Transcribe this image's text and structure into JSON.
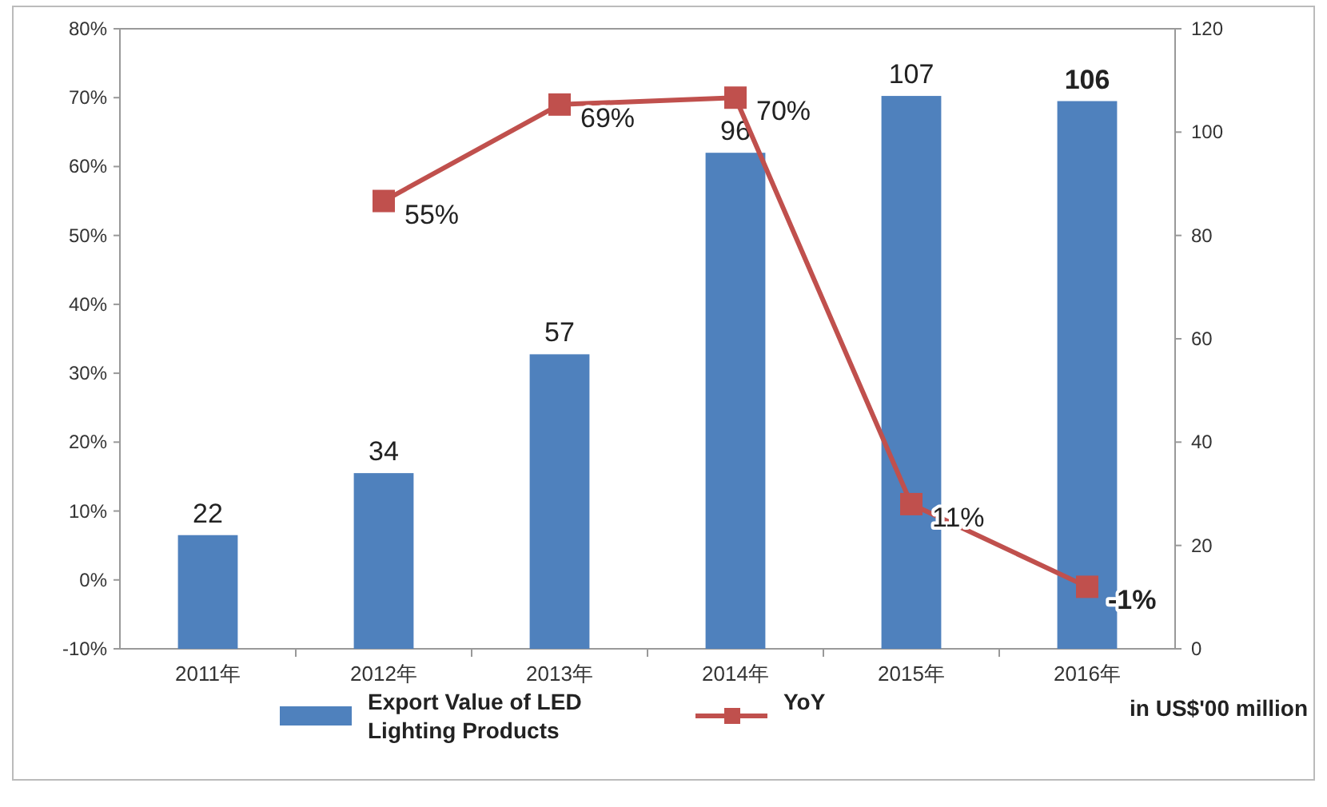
{
  "chart_data": {
    "type": "bar",
    "categories": [
      "2011年",
      "2012年",
      "2013年",
      "2014年",
      "2015年",
      "2016年"
    ],
    "series": [
      {
        "name": "Export Value of LED Lighting Products",
        "axis": "y2",
        "color": "#4f81bd",
        "values": [
          22,
          34,
          57,
          96,
          107,
          106
        ],
        "value_labels": [
          "22",
          "34",
          "57",
          "96",
          "107",
          "**106**"
        ]
      },
      {
        "name": "YoY",
        "type": "line",
        "color": "#c0504d",
        "marker": "square",
        "values": [
          null,
          55,
          69,
          70,
          11,
          -1
        ],
        "value_labels": [
          null,
          "55%",
          "69%",
          "70%",
          "11%",
          "**-1%**"
        ]
      }
    ],
    "ylim": [
      -10,
      80
    ],
    "yticks": [
      {
        "value": -10,
        "label": "-10%"
      },
      {
        "value": 0,
        "label": "0%"
      },
      {
        "value": 10,
        "label": "10%"
      },
      {
        "value": 20,
        "label": "20%"
      },
      {
        "value": 30,
        "label": "30%"
      },
      {
        "value": 40,
        "label": "40%"
      },
      {
        "value": 50,
        "label": "50%"
      },
      {
        "value": 60,
        "label": "60%"
      },
      {
        "value": 70,
        "label": "70%"
      },
      {
        "value": 80,
        "label": "80%"
      }
    ],
    "y2lim": [
      0,
      120
    ],
    "y2ticks": [
      0,
      20,
      40,
      60,
      80,
      100,
      120
    ],
    "grid": false,
    "legend": "bottom",
    "annotations": [
      "in US$'00 million"
    ]
  }
}
